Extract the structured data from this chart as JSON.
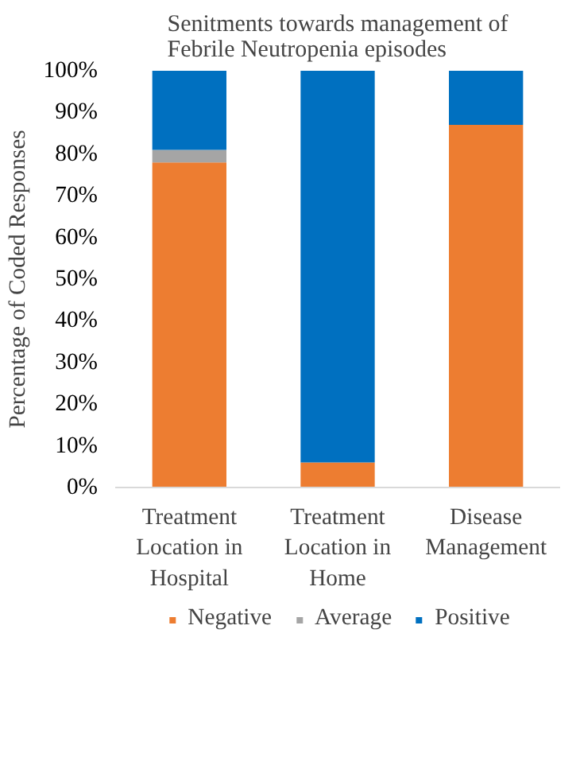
{
  "chart_data": {
    "type": "bar",
    "stacked": true,
    "title": "Senitments towards management of Febrile Neutropenia episodes",
    "ylabel": "Percentage of Coded Responses",
    "categories": [
      "Treatment Location in Hospital",
      "Treatment Location in Home",
      "Disease Management"
    ],
    "series": [
      {
        "name": "Negative",
        "color": "#ed7d31",
        "values": [
          78,
          6,
          87
        ]
      },
      {
        "name": "Average",
        "color": "#a5a5a5",
        "values": [
          3,
          0,
          0
        ]
      },
      {
        "name": "Positive",
        "color": "#0070c0",
        "values": [
          19,
          94,
          13
        ]
      }
    ],
    "ylim": [
      0,
      100
    ],
    "yticks": [
      {
        "value": 0,
        "label": "0%"
      },
      {
        "value": 10,
        "label": "10%"
      },
      {
        "value": 20,
        "label": "20%"
      },
      {
        "value": 30,
        "label": "30%"
      },
      {
        "value": 40,
        "label": "40%"
      },
      {
        "value": 50,
        "label": "50%"
      },
      {
        "value": 60,
        "label": "60%"
      },
      {
        "value": 70,
        "label": "70%"
      },
      {
        "value": 80,
        "label": "80%"
      },
      {
        "value": 90,
        "label": "90%"
      },
      {
        "value": 100,
        "label": "100%"
      }
    ],
    "grid": false,
    "legend": "bottom"
  }
}
